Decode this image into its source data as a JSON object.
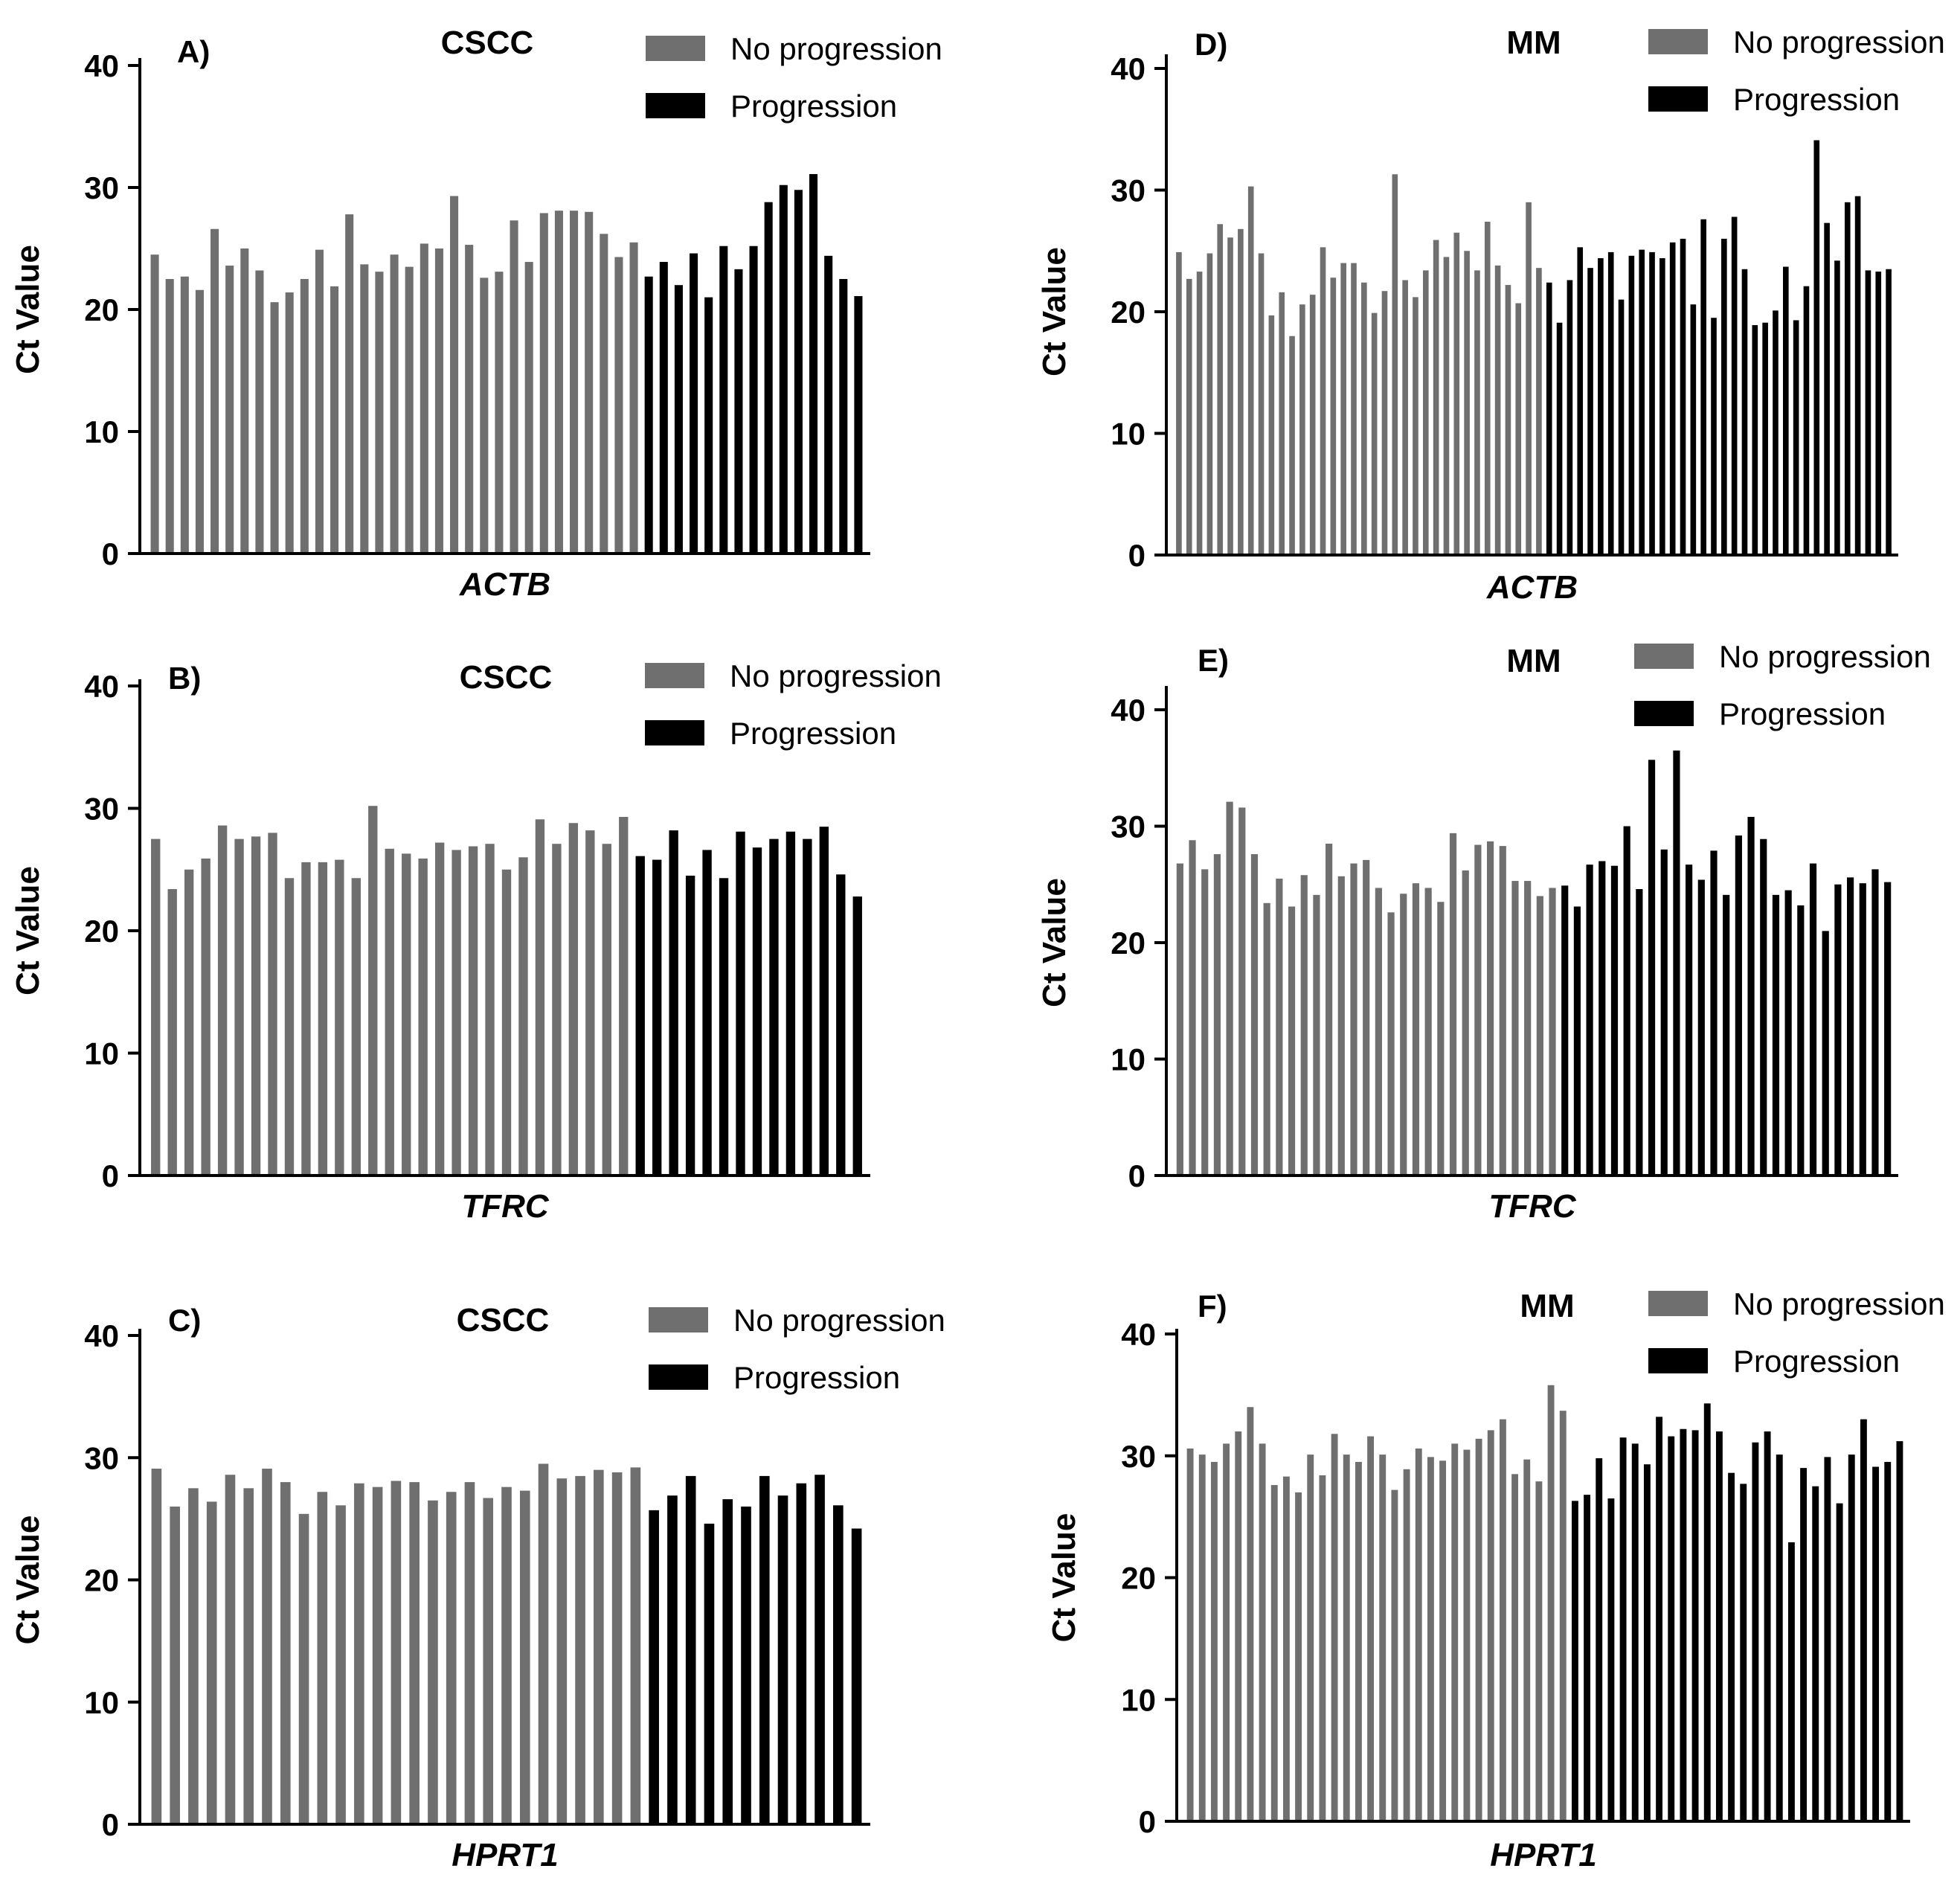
{
  "figure": {
    "ylabel": "Ct Value"
  },
  "chart_data": [
    {
      "type": "bar",
      "panel": "A)",
      "title": "CSCC",
      "xlabel": "ACTB",
      "ylabel": "Ct Value",
      "ylim": [
        0,
        40
      ],
      "yticks": [
        "0",
        "10",
        "20",
        "30",
        "40"
      ],
      "series": [
        {
          "name": "No progression",
          "color": "#6f6f6f",
          "values": [
            24.5,
            22.5,
            22.7,
            21.6,
            26.6,
            23.6,
            25.0,
            23.2,
            20.6,
            21.4,
            22.5,
            24.9,
            21.9,
            27.8,
            23.7,
            23.1,
            24.5,
            23.5,
            25.4,
            25.0,
            29.3,
            25.3,
            22.6,
            23.1,
            27.3,
            23.9,
            27.9,
            28.1,
            28.1,
            28.0,
            26.2,
            24.3,
            25.5
          ]
        },
        {
          "name": "Progression",
          "color": "#000000",
          "values": [
            22.7,
            23.9,
            22.0,
            24.6,
            21.0,
            25.2,
            23.3,
            25.2,
            28.8,
            30.2,
            29.8,
            31.1,
            24.4,
            22.5,
            21.1
          ]
        }
      ]
    },
    {
      "type": "bar",
      "panel": "B)",
      "title": "CSCC",
      "xlabel": "TFRC",
      "ylabel": "Ct Value",
      "ylim": [
        0,
        40
      ],
      "yticks": [
        "0",
        "10",
        "20",
        "30",
        "40"
      ],
      "series": [
        {
          "name": "No progression",
          "color": "#6f6f6f",
          "values": [
            27.5,
            23.4,
            25.0,
            25.9,
            28.6,
            27.5,
            27.7,
            28.0,
            24.3,
            25.6,
            25.6,
            25.8,
            24.3,
            30.2,
            26.7,
            26.3,
            25.9,
            27.2,
            26.6,
            26.9,
            27.1,
            25.0,
            26.0,
            29.1,
            27.1,
            28.8,
            28.2,
            27.1,
            29.3
          ]
        },
        {
          "name": "Progression",
          "color": "#000000",
          "values": [
            26.1,
            25.8,
            28.2,
            24.5,
            26.6,
            24.3,
            28.1,
            26.8,
            27.5,
            28.1,
            27.5,
            28.5,
            24.6,
            22.8
          ]
        }
      ]
    },
    {
      "type": "bar",
      "panel": "C)",
      "title": "CSCC",
      "xlabel": "HPRT1",
      "ylabel": "Ct Value",
      "ylim": [
        0,
        40
      ],
      "yticks": [
        "0",
        "10",
        "20",
        "30",
        "40"
      ],
      "series": [
        {
          "name": "No progression",
          "color": "#6f6f6f",
          "values": [
            29.1,
            26.0,
            27.5,
            26.4,
            28.6,
            27.5,
            29.1,
            28.0,
            25.4,
            27.2,
            26.1,
            27.9,
            27.6,
            28.1,
            28.0,
            26.5,
            27.2,
            28.0,
            26.7,
            27.6,
            27.3,
            29.5,
            28.3,
            28.5,
            29.0,
            28.8,
            29.2
          ]
        },
        {
          "name": "Progression",
          "color": "#000000",
          "values": [
            25.7,
            26.9,
            28.5,
            24.6,
            26.6,
            26.0,
            28.5,
            26.9,
            27.9,
            28.6,
            26.1,
            24.2
          ]
        }
      ]
    },
    {
      "type": "bar",
      "panel": "D)",
      "title": "MM",
      "xlabel": "ACTB",
      "ylabel": "Ct Value",
      "ylim": [
        0,
        40
      ],
      "yticks": [
        "0",
        "10",
        "20",
        "30",
        "40"
      ],
      "series": [
        {
          "name": "No progression",
          "color": "#6f6f6f",
          "values": [
            24.9,
            22.7,
            23.3,
            24.8,
            27.2,
            26.1,
            26.8,
            30.3,
            24.8,
            19.7,
            21.6,
            18.0,
            20.6,
            21.4,
            25.3,
            22.8,
            24.0,
            24.0,
            22.4,
            19.9,
            21.7,
            31.3,
            22.6,
            21.2,
            23.4,
            25.9,
            24.5,
            26.5,
            25.0,
            23.4,
            27.4,
            23.8,
            22.2,
            20.7,
            29.0,
            23.6
          ]
        },
        {
          "name": "Progression",
          "color": "#000000",
          "values": [
            22.4,
            19.1,
            22.6,
            25.3,
            23.6,
            24.4,
            24.9,
            21.0,
            24.6,
            25.1,
            24.9,
            24.4,
            25.7,
            26.0,
            20.6,
            27.6,
            19.5,
            26.0,
            27.8,
            23.5,
            18.9,
            19.1,
            20.1,
            23.7,
            19.3,
            22.1,
            34.1,
            27.3,
            24.2,
            29.0,
            29.5,
            23.4,
            23.3,
            23.5
          ]
        }
      ]
    },
    {
      "type": "bar",
      "panel": "E)",
      "title": "MM",
      "xlabel": "TFRC",
      "ylabel": "Ct Value",
      "ylim": [
        0,
        40
      ],
      "yticks": [
        "0",
        "10",
        "20",
        "30",
        "40"
      ],
      "series": [
        {
          "name": "No progression",
          "color": "#6f6f6f",
          "values": [
            26.8,
            28.8,
            26.3,
            27.6,
            32.1,
            31.6,
            27.6,
            23.4,
            25.5,
            23.1,
            25.8,
            24.1,
            28.5,
            25.7,
            26.8,
            27.1,
            24.7,
            22.6,
            24.2,
            25.1,
            24.7,
            23.5,
            29.4,
            26.2,
            28.4,
            28.7,
            28.3,
            25.3,
            25.3,
            24.0,
            24.7
          ]
        },
        {
          "name": "Progression",
          "color": "#000000",
          "values": [
            24.9,
            23.1,
            26.7,
            27.0,
            26.6,
            30.0,
            24.6,
            35.7,
            28.0,
            36.5,
            26.7,
            25.4,
            27.9,
            24.1,
            29.2,
            30.8,
            28.9,
            24.1,
            24.5,
            23.2,
            26.8,
            21.0,
            25.0,
            25.6,
            25.1,
            26.3,
            25.2
          ]
        }
      ]
    },
    {
      "type": "bar",
      "panel": "F)",
      "title": "MM",
      "xlabel": "HPRT1",
      "ylabel": "Ct Value",
      "ylim": [
        0,
        40
      ],
      "yticks": [
        "0",
        "10",
        "20",
        "30",
        "40"
      ],
      "series": [
        {
          "name": "No progression",
          "color": "#6f6f6f",
          "values": [
            30.6,
            30.1,
            29.5,
            31.0,
            32.0,
            34.0,
            31.0,
            27.6,
            28.3,
            27.0,
            30.1,
            28.4,
            31.8,
            30.1,
            29.5,
            31.6,
            30.1,
            27.2,
            28.9,
            30.6,
            29.9,
            29.6,
            31.0,
            30.5,
            31.4,
            32.1,
            33.0,
            28.5,
            29.7,
            27.9,
            35.8,
            33.7
          ]
        },
        {
          "name": "Progression",
          "color": "#000000",
          "values": [
            26.3,
            26.8,
            29.8,
            26.5,
            31.5,
            31.0,
            29.3,
            33.2,
            31.6,
            32.2,
            32.1,
            34.3,
            32.0,
            28.6,
            27.7,
            31.1,
            32.0,
            30.1,
            22.9,
            29.0,
            27.5,
            29.9,
            26.1,
            30.1,
            33.0,
            29.1,
            29.5,
            31.2
          ]
        }
      ]
    }
  ]
}
